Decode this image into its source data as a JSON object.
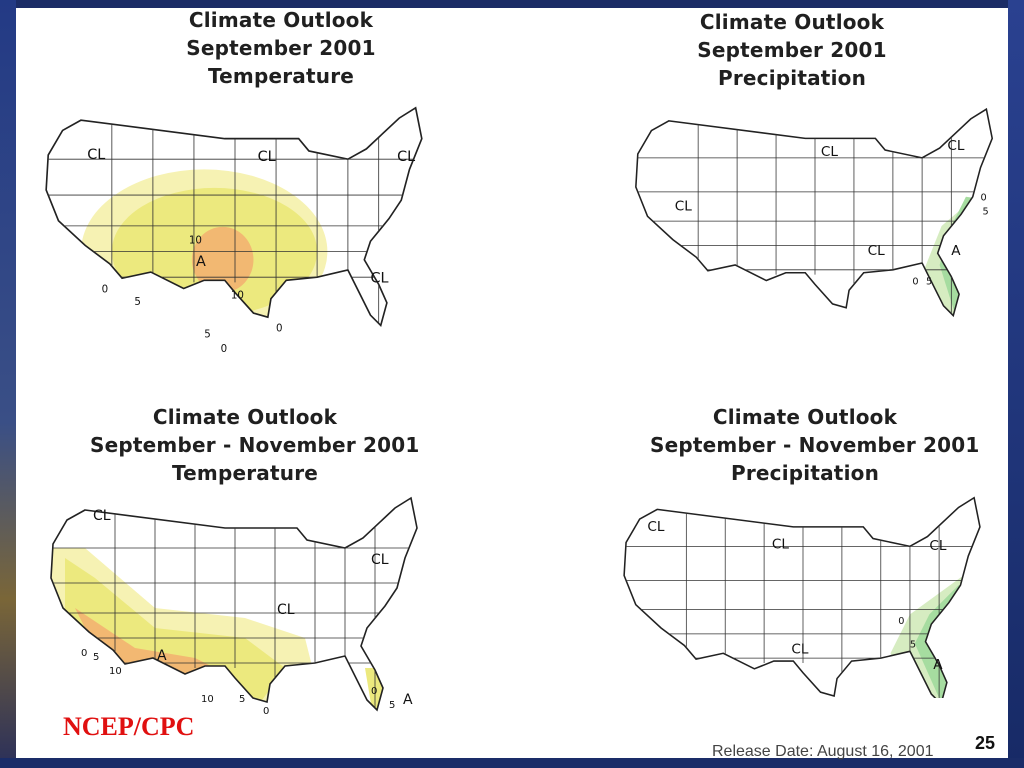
{
  "panels": [
    {
      "title_lines": [
        "Climate Outlook",
        "September  2001",
        "Temperature"
      ],
      "labels": {
        "cl1": "CL",
        "cl2": "CL",
        "cl3": "CL",
        "cl4": "CL",
        "anomaly": "A"
      },
      "contours": [
        "10",
        "0",
        "5",
        "10",
        "5",
        "0",
        "0"
      ]
    },
    {
      "title_lines": [
        "Climate Outlook",
        "September  2001",
        "Precipitation"
      ],
      "labels": {
        "cl1": "CL",
        "cl2": "CL",
        "cl3": "CL",
        "cl4": "CL",
        "anomaly": "A"
      },
      "contours": [
        "0",
        "5",
        "0",
        "5"
      ]
    },
    {
      "title_lines": [
        "Climate Outlook",
        "September - November  2001",
        "Temperature"
      ],
      "labels": {
        "cl1": "CL",
        "cl2": "CL",
        "cl3": "CL",
        "anomaly": "A",
        "anomaly2": "A"
      },
      "contours": [
        "0",
        "5",
        "10",
        "10",
        "5",
        "0",
        "0",
        "5"
      ]
    },
    {
      "title_lines": [
        "Climate Outlook",
        "September - November  2001",
        "Precipitation"
      ],
      "labels": {
        "cl1": "CL",
        "cl2": "CL",
        "cl3": "CL",
        "cl4": "CL",
        "anomaly": "A"
      },
      "contours": [
        "0",
        "5"
      ]
    }
  ],
  "legend_colors": {
    "above_light": "#f6f2b3",
    "above_mid": "#ece97e",
    "above_strong": "#f2b872",
    "wet_light": "#d6ecc1",
    "wet_mid": "#a6dca0"
  },
  "footer": {
    "credit": "NCEP/CPC",
    "release_date": "Release Date: August 16, 2001",
    "page_number": "25"
  }
}
